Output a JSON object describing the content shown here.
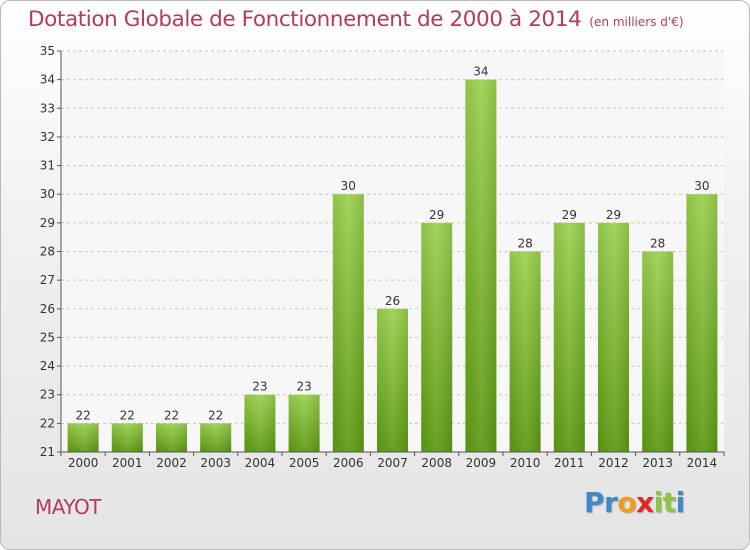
{
  "title": "Dotation Globale de Fonctionnement de 2000 à 2014",
  "units": "(en milliers d'€)",
  "commune": "MAYOT",
  "logo": [
    "P",
    "r",
    "o",
    "x",
    "i",
    "t",
    "i"
  ],
  "colors": {
    "bar_top": "#9bd04e",
    "bar_bottom": "#5d9a13",
    "title": "#b43b5a"
  },
  "chart_data": {
    "type": "bar",
    "categories": [
      "2000",
      "2001",
      "2002",
      "2003",
      "2004",
      "2005",
      "2006",
      "2007",
      "2008",
      "2009",
      "2010",
      "2011",
      "2012",
      "2013",
      "2014"
    ],
    "values": [
      22,
      22,
      22,
      22,
      23,
      23,
      30,
      26,
      29,
      34,
      28,
      29,
      29,
      28,
      30
    ],
    "ylim": [
      21,
      35
    ],
    "yticks": [
      21,
      22,
      23,
      24,
      25,
      26,
      27,
      28,
      29,
      30,
      31,
      32,
      33,
      34,
      35
    ],
    "grid": true
  }
}
